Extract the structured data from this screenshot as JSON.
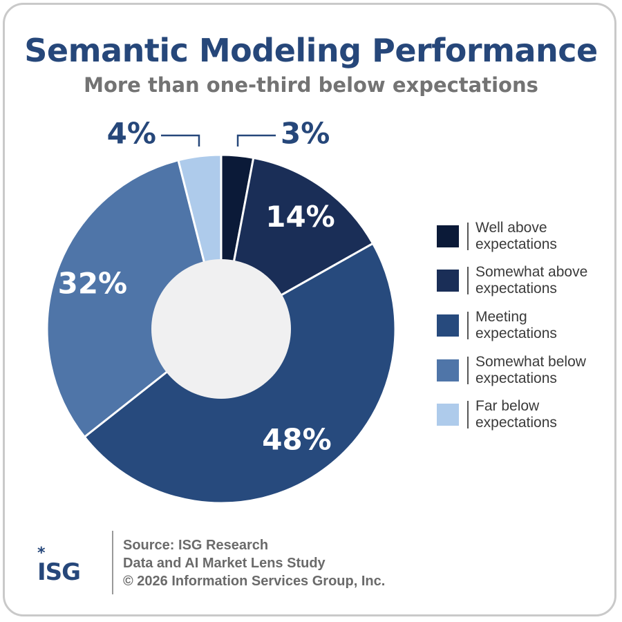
{
  "title": "Semantic Modeling Performance",
  "subtitle": "More than one-third below expectations",
  "chart_data": {
    "type": "pie",
    "title": "Semantic Modeling Performance",
    "subtitle": "More than one-third below expectations",
    "categories": [
      "Well above expectations",
      "Somewhat above expectations",
      "Meeting expectations",
      "Somewhat below expectations",
      "Far below expectations"
    ],
    "values": [
      3,
      14,
      48,
      32,
      4
    ],
    "labels": [
      "3%",
      "14%",
      "48%",
      "32%",
      "4%"
    ],
    "colors": [
      "#0b1a38",
      "#1a2e57",
      "#274a7d",
      "#4f75a8",
      "#aecbeb"
    ],
    "donut": true,
    "legend_position": "right"
  },
  "legend": {
    "items": [
      {
        "line1": "Well above",
        "line2": "expectations",
        "color": "#0b1a38"
      },
      {
        "line1": "Somewhat above",
        "line2": "expectations",
        "color": "#1a2e57"
      },
      {
        "line1": "Meeting",
        "line2": "expectations",
        "color": "#274a7d"
      },
      {
        "line1": "Somewhat below",
        "line2": "expectations",
        "color": "#4f75a8"
      },
      {
        "line1": "Far below",
        "line2": "expectations",
        "color": "#aecbeb"
      }
    ]
  },
  "footer": {
    "logo_text": "ISG",
    "source_line1": "Source: ISG Research",
    "source_line2": "Data and AI Market Lens Study",
    "source_line3": "© 2026 Information Services Group, Inc."
  }
}
